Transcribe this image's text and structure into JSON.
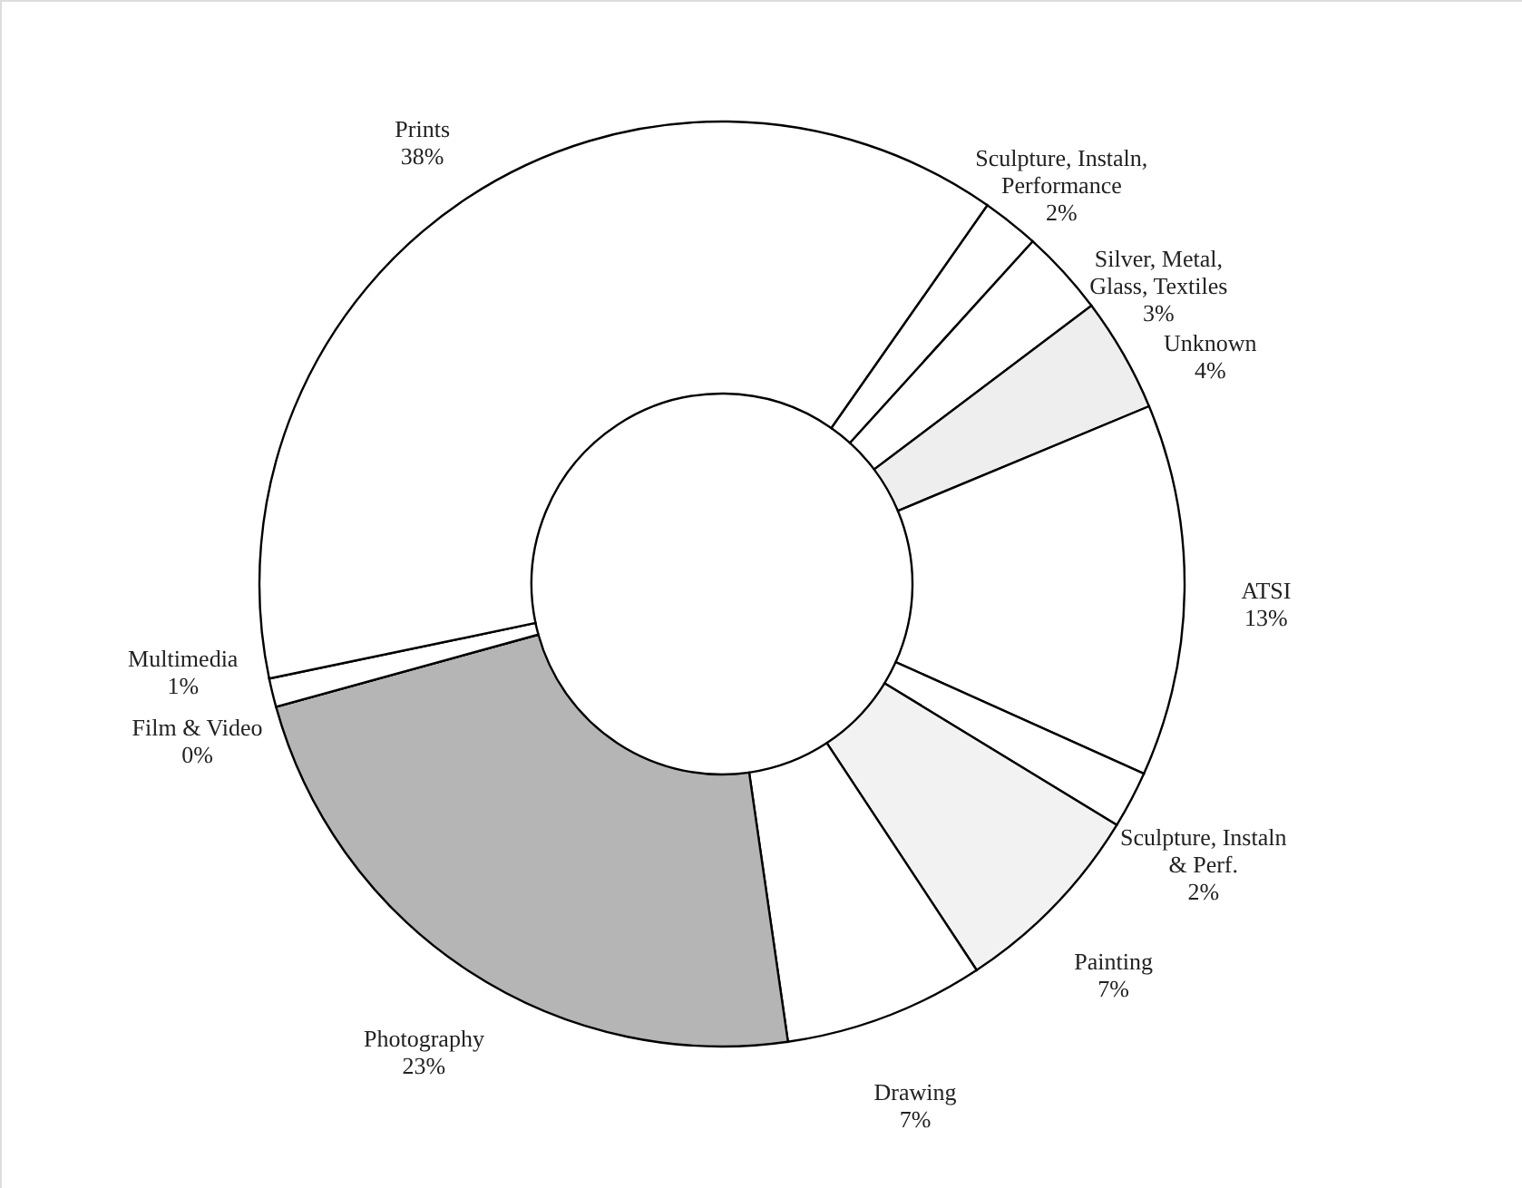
{
  "chart_data": {
    "type": "donut",
    "categories": [
      "Sculpture, Instaln,\nPerformance",
      "Silver, Metal,\nGlass, Textiles",
      "Unknown",
      "ATSI",
      "Sculpture, Instaln\n& Perf.",
      "Painting",
      "Drawing",
      "Photography",
      "Film & Video",
      "Multimedia",
      "Prints"
    ],
    "values": [
      2,
      3,
      4,
      13,
      2,
      7,
      7,
      23,
      0,
      1,
      38
    ],
    "value_labels": [
      "2%",
      "3%",
      "4%",
      "13%",
      "2%",
      "7%",
      "7%",
      "23%",
      "0%",
      "1%",
      "38%"
    ],
    "colors": [
      "#ffffff",
      "#ffffff",
      "#eeeeee",
      "#ffffff",
      "#ffffff",
      "#f2f2f2",
      "#ffffff",
      "#b5b5b5",
      "#222222",
      "#ffffff",
      "#ffffff"
    ],
    "data_labels": false
  }
}
